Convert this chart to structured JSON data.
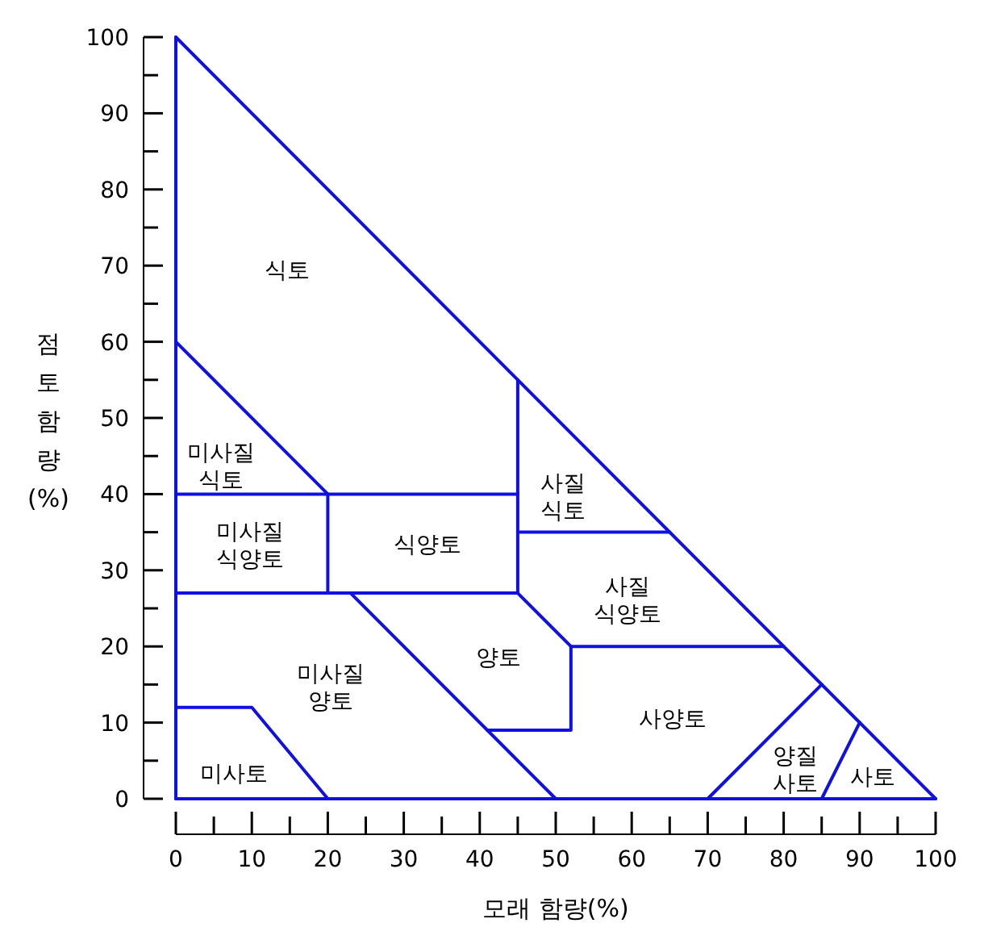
{
  "chart_data": {
    "type": "line",
    "xlabel": "모래 함량(%)",
    "ylabel": "점토 함량 (%)",
    "xlim": [
      0,
      100
    ],
    "ylim": [
      0,
      100
    ],
    "xticks": [
      0,
      {
        "value": 5,
        "label": null
      },
      10,
      {
        "value": 15,
        "label": null
      },
      20,
      {
        "value": 25,
        "label": null
      },
      30,
      {
        "value": 35,
        "label": null
      },
      40,
      {
        "value": 45,
        "label": null
      },
      50,
      {
        "value": 55,
        "label": null
      },
      60,
      {
        "value": 65,
        "label": null
      },
      70,
      {
        "value": 75,
        "label": null
      },
      80,
      {
        "value": 85,
        "label": null
      },
      90,
      {
        "value": 95,
        "label": null
      },
      100
    ],
    "yticks": [
      0,
      {
        "value": 5,
        "label": null
      },
      10,
      {
        "value": 15,
        "label": null
      },
      20,
      {
        "value": 25,
        "label": null
      },
      30,
      {
        "value": 35,
        "label": null
      },
      40,
      {
        "value": 45,
        "label": null
      },
      50,
      {
        "value": 55,
        "label": null
      },
      60,
      {
        "value": 65,
        "label": null
      },
      70,
      {
        "value": 75,
        "label": null
      },
      80,
      {
        "value": 85,
        "label": null
      },
      90,
      {
        "value": 95,
        "label": null
      },
      100
    ],
    "marker": "none",
    "line_style": "solid",
    "series": [
      {
        "color": "#1010e0",
        "x": [
          0,
          0
        ],
        "values": [
          0,
          100
        ]
      },
      {
        "color": "#1010e0",
        "x": [
          0,
          100
        ],
        "values": [
          100,
          0
        ]
      },
      {
        "color": "#1010e0",
        "x": [
          0,
          100
        ],
        "values": [
          0,
          0
        ]
      },
      {
        "color": "#1010e0",
        "x": [
          0,
          20
        ],
        "values": [
          60,
          40
        ]
      },
      {
        "color": "#1010e0",
        "x": [
          0,
          45
        ],
        "values": [
          40,
          40
        ]
      },
      {
        "color": "#1010e0",
        "x": [
          20,
          20
        ],
        "values": [
          27,
          40
        ]
      },
      {
        "color": "#1010e0",
        "x": [
          45,
          45
        ],
        "values": [
          27,
          55
        ]
      },
      {
        "color": "#1010e0",
        "x": [
          45,
          65
        ],
        "values": [
          35,
          35
        ]
      },
      {
        "color": "#1010e0",
        "x": [
          0,
          45
        ],
        "values": [
          27,
          27
        ]
      },
      {
        "color": "#1010e0",
        "x": [
          23,
          50
        ],
        "values": [
          27,
          0
        ]
      },
      {
        "color": "#1010e0",
        "x": [
          45,
          52,
          52,
          41
        ],
        "values": [
          27,
          20,
          9,
          9
        ]
      },
      {
        "color": "#1010e0",
        "x": [
          52,
          80
        ],
        "values": [
          20,
          20
        ]
      },
      {
        "color": "#1010e0",
        "x": [
          70,
          85
        ],
        "values": [
          0,
          15
        ]
      },
      {
        "color": "#1010e0",
        "x": [
          85,
          90
        ],
        "values": [
          0,
          10
        ]
      },
      {
        "color": "#1010e0",
        "x": [
          0,
          10,
          20
        ],
        "values": [
          12,
          12,
          0
        ]
      }
    ],
    "annotations": [
      "식토",
      "미사질\n식토",
      "미사질\n식양토",
      "식양토",
      "사질\n식토",
      "사질\n식양토",
      "양토",
      "미사질\n양토",
      "사양토",
      "미사토",
      "양질\n사토",
      "사토"
    ]
  }
}
